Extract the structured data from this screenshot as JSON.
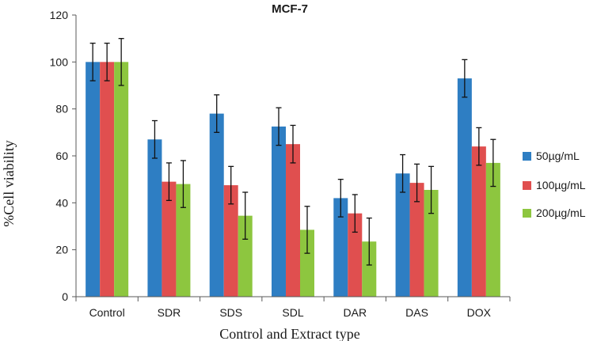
{
  "chart_data": {
    "type": "bar",
    "title": "MCF-7",
    "xlabel": "Control and Extract type",
    "ylabel": "%Cell viability",
    "ylim": [
      0,
      120
    ],
    "yticks": [
      0,
      20,
      40,
      60,
      80,
      100,
      120
    ],
    "grid": false,
    "legend_position": "right",
    "categories": [
      "Control",
      "SDR",
      "SDS",
      "SDL",
      "DAR",
      "DAS",
      "DOX"
    ],
    "series": [
      {
        "name": "50µg/mL",
        "color": "#2e7ec3",
        "values": [
          100,
          67,
          78,
          72.5,
          42,
          52.5,
          93
        ],
        "errors": [
          8,
          8,
          8,
          8,
          8,
          8,
          8
        ]
      },
      {
        "name": "100µg/mL",
        "color": "#e04f4f",
        "values": [
          100,
          49,
          47.5,
          65,
          35.5,
          48.5,
          64
        ],
        "errors": [
          8,
          8,
          8,
          8,
          8,
          8,
          8
        ]
      },
      {
        "name": "200µg/mL",
        "color": "#8dc63f",
        "values": [
          100,
          48,
          34.5,
          28.5,
          23.5,
          45.5,
          57
        ],
        "errors": [
          10,
          10,
          10,
          10,
          10,
          10,
          10
        ]
      }
    ]
  }
}
